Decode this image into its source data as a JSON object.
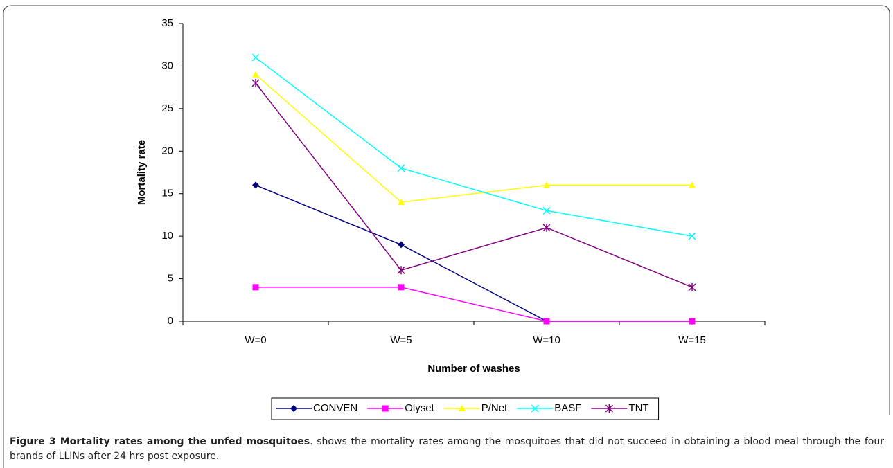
{
  "chart_data": {
    "type": "line",
    "xlabel": "Number of washes",
    "ylabel": "Mortality rate",
    "categories": [
      "W=0",
      "W=5",
      "W=10",
      "W=15"
    ],
    "series": [
      {
        "name": "CONVEN",
        "color": "#000080",
        "marker": "diamond",
        "values": [
          16,
          9,
          0,
          0
        ]
      },
      {
        "name": "Olyset",
        "color": "#ff00ff",
        "marker": "square",
        "values": [
          4,
          4,
          0,
          0
        ]
      },
      {
        "name": "P/Net",
        "color": "#ffff00",
        "marker": "triangle",
        "values": [
          29,
          14,
          16,
          16
        ]
      },
      {
        "name": "BASF",
        "color": "#00ffff",
        "marker": "x",
        "values": [
          31,
          18,
          13,
          10
        ]
      },
      {
        "name": "TNT",
        "color": "#800080",
        "marker": "star",
        "values": [
          28,
          6,
          11,
          4
        ]
      }
    ],
    "ylim": [
      0,
      35
    ],
    "yticks": [
      0,
      5,
      10,
      15,
      20,
      25,
      30,
      35
    ],
    "legend": "bottom"
  },
  "caption": {
    "label": "Figure 3 Mortality rates among the unfed mosquitoes",
    "text": ". shows the mortality rates among the mosquitoes that did not succeed in obtaining a blood meal through the four brands of LLINs after 24 hrs post exposure."
  }
}
